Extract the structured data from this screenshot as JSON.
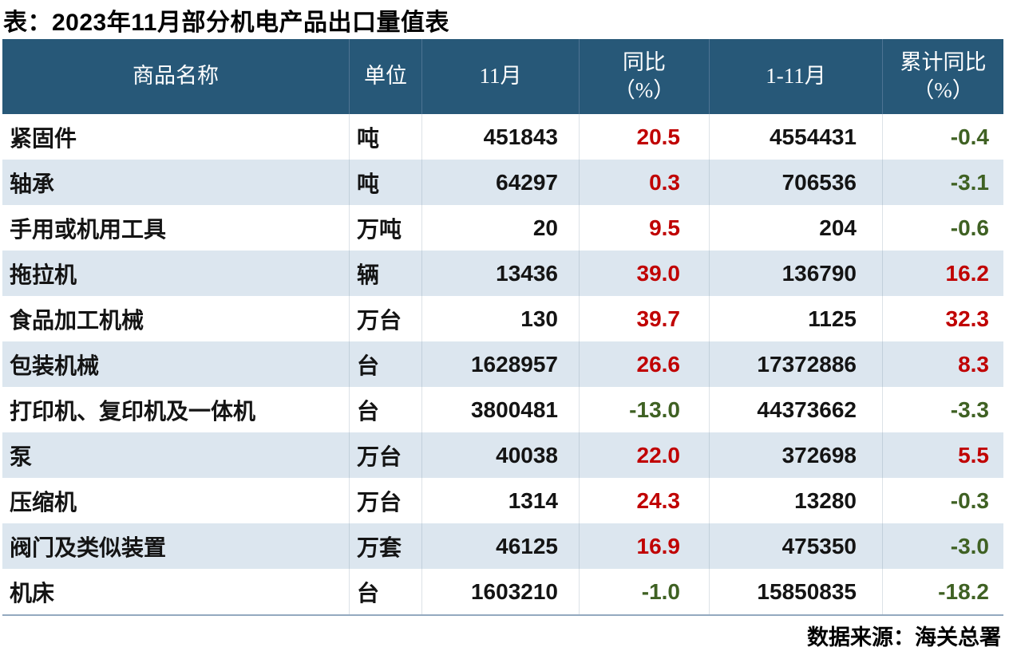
{
  "title": "表：2023年11月部分机电产品出口量值表",
  "source_note": "数据来源：海关总署",
  "colors": {
    "header_bg": "#275878",
    "header_text": "#FFFFFF",
    "stripe_row_bg": "#DCE6EF",
    "positive_value": "#C00000",
    "negative_value": "#3F6123",
    "table_bottom_border": "#93A9BF"
  },
  "header_display": {
    "yoy_line1": "同比",
    "yoy_line2": "（%）",
    "cum_yoy_line1": "累计同比",
    "cum_yoy_line2": "（%）"
  },
  "chart_data": {
    "type": "table",
    "title": "表：2023年11月部分机电产品出口量值表",
    "source": "数据来源：海关总署",
    "columns": [
      "商品名称",
      "单位",
      "11月",
      "同比（%）",
      "1-11月",
      "累计同比（%）"
    ],
    "rows": [
      [
        "紧固件",
        "吨",
        "451843",
        "20.5",
        "4554431",
        "-0.4"
      ],
      [
        "轴承",
        "吨",
        "64297",
        "0.3",
        "706536",
        "-3.1"
      ],
      [
        "手用或机用工具",
        "万吨",
        "20",
        "9.5",
        "204",
        "-0.6"
      ],
      [
        "拖拉机",
        "辆",
        "13436",
        "39.0",
        "136790",
        "16.2"
      ],
      [
        "食品加工机械",
        "万台",
        "130",
        "39.7",
        "1125",
        "32.3"
      ],
      [
        "包装机械",
        "台",
        "1628957",
        "26.6",
        "17372886",
        "8.3"
      ],
      [
        "打印机、复印机及一体机",
        "台",
        "3800481",
        "-13.0",
        "44373662",
        "-3.3"
      ],
      [
        "泵",
        "万台",
        "40038",
        "22.0",
        "372698",
        "5.5"
      ],
      [
        "压缩机",
        "万台",
        "1314",
        "24.3",
        "13280",
        "-0.3"
      ],
      [
        "阀门及类似装置",
        "万套",
        "46125",
        "16.9",
        "475350",
        "-3.0"
      ],
      [
        "机床",
        "台",
        "1603210",
        "-1.0",
        "15850835",
        "-18.2"
      ]
    ]
  }
}
